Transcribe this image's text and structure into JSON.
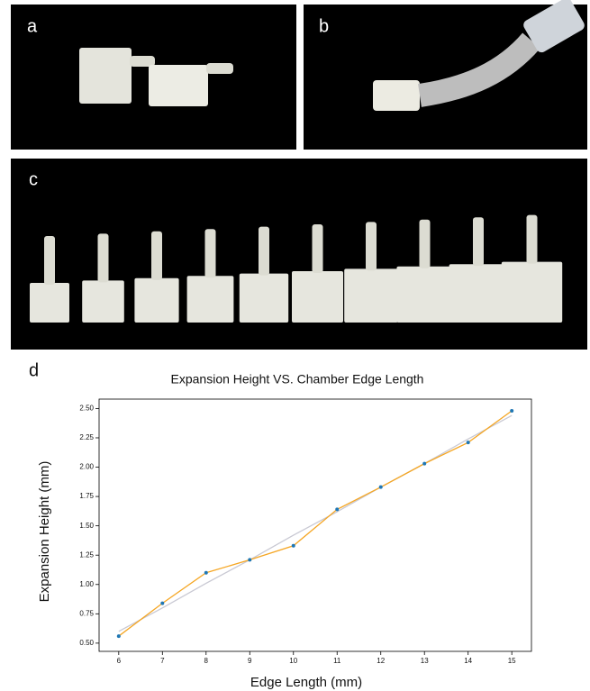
{
  "panels": [
    "a",
    "b",
    "c",
    "d"
  ],
  "chart_data": {
    "type": "line",
    "title": "Expansion Height VS. Chamber Edge Length",
    "x_label": "Edge Length (mm)",
    "y_label": "Expansion Height (mm)",
    "x": [
      6,
      7,
      8,
      9,
      10,
      11,
      12,
      13,
      14,
      15
    ],
    "series": [
      {
        "color": "#f5a623",
        "marker_color": "#1f77b4",
        "markers": true,
        "values": [
          0.56,
          0.84,
          1.1,
          1.21,
          1.33,
          1.64,
          1.83,
          2.03,
          2.21,
          2.48
        ]
      },
      {
        "color": "#c9c9d3",
        "markers": false,
        "values": [
          0.6,
          0.8,
          1.01,
          1.21,
          1.42,
          1.62,
          1.83,
          2.03,
          2.24,
          2.44
        ]
      }
    ],
    "xlim": [
      5.55,
      15.45
    ],
    "ylim": [
      0.43,
      2.58
    ],
    "xticks": [
      6,
      7,
      8,
      9,
      10,
      11,
      12,
      13,
      14,
      15
    ],
    "yticks": [
      {
        "value": 0.5,
        "label": "0.50"
      },
      {
        "value": 0.75,
        "label": "0.75"
      },
      {
        "value": 1.0,
        "label": "1.00"
      },
      {
        "value": 1.25,
        "label": "1.25"
      },
      {
        "value": 1.5,
        "label": "1.50"
      },
      {
        "value": 1.75,
        "label": "1.75"
      },
      {
        "value": 2.0,
        "label": "2.00"
      },
      {
        "value": 2.25,
        "label": "2.25"
      },
      {
        "value": 2.5,
        "label": "2.50"
      }
    ]
  }
}
